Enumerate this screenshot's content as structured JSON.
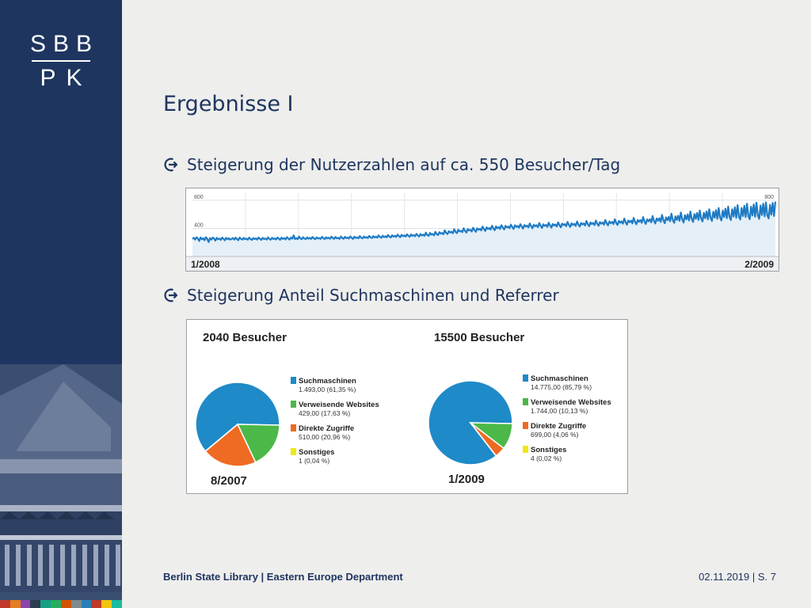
{
  "logo": {
    "top": "SBB",
    "bottom": "PK"
  },
  "title": "Ergebnisse I",
  "bullets": [
    "Steigerung der Nutzerzahlen auf ca. 550 Besucher/Tag",
    "Steigerung Anteil Suchmaschinen und Referrer"
  ],
  "colors": {
    "navy": "#1e3560",
    "line": "#1f7bc4",
    "area": "#e4eff8",
    "pie_search": "#1f8ac8",
    "pie_referrer": "#4cb848",
    "pie_direct": "#ef6a22",
    "pie_other": "#f1e814"
  },
  "chart_data": [
    {
      "type": "area",
      "xlabel_start": "1/2008",
      "xlabel_end": "2/2009",
      "yticks": [
        800,
        400
      ],
      "ylim": [
        0,
        900
      ],
      "x_start": "1/2008",
      "x_end": "2/2009",
      "series": [
        {
          "values": [
            250,
            265,
            240,
            275,
            255,
            220,
            270,
            245,
            260,
            230,
            275,
            250,
            205,
            260,
            240,
            270,
            255,
            225,
            265,
            245,
            255,
            235,
            270,
            250,
            230,
            265,
            245,
            260,
            240,
            250,
            262,
            240,
            268,
            248,
            232,
            270,
            250,
            240,
            265,
            245,
            255,
            238,
            268,
            250,
            235,
            262,
            248,
            258,
            240,
            270,
            252,
            236,
            266,
            248,
            256,
            240,
            272,
            250,
            238,
            265,
            248,
            258,
            242,
            270,
            254,
            236,
            268,
            250,
            262,
            242,
            276,
            255,
            240,
            270,
            252,
            300,
            248,
            262,
            245,
            285,
            258,
            245,
            275,
            255,
            248,
            272,
            252,
            265,
            250,
            278,
            258,
            245,
            272,
            255,
            262,
            250,
            280,
            260,
            248,
            275,
            256,
            268,
            252,
            282,
            262,
            250,
            278,
            258,
            265,
            250,
            285,
            262,
            252,
            280,
            260,
            270,
            255,
            286,
            265,
            250,
            282,
            262,
            272,
            258,
            290,
            268,
            258,
            285,
            266,
            276,
            262,
            292,
            272,
            262,
            290,
            270,
            282,
            268,
            300,
            278,
            266,
            296,
            276,
            288,
            272,
            306,
            284,
            270,
            302,
            282,
            295,
            278,
            312,
            290,
            275,
            308,
            288,
            300,
            282,
            316,
            295,
            280,
            314,
            293,
            305,
            287,
            322,
            300,
            285,
            320,
            298,
            312,
            292,
            340,
            305,
            292,
            335,
            310,
            320,
            300,
            350,
            318,
            305,
            345,
            325,
            335,
            315,
            372,
            335,
            318,
            360,
            340,
            352,
            330,
            388,
            350,
            332,
            380,
            355,
            366,
            345,
            400,
            365,
            340,
            392,
            370,
            380,
            355,
            410,
            378,
            350,
            400,
            380,
            395,
            370,
            425,
            392,
            362,
            415,
            392,
            405,
            382,
            438,
            400,
            372,
            428,
            402,
            418,
            392,
            446,
            410,
            385,
            436,
            412,
            426,
            400,
            452,
            420,
            392,
            444,
            420,
            434,
            408,
            460,
            428,
            396,
            448,
            425,
            440,
            412,
            470,
            432,
            400,
            452,
            430,
            445,
            415,
            476,
            438,
            405,
            458,
            435,
            450,
            420,
            480,
            442,
            410,
            462,
            440,
            456,
            425,
            486,
            446,
            414,
            468,
            445,
            460,
            430,
            492,
            450,
            420,
            472,
            448,
            465,
            434,
            498,
            455,
            425,
            478,
            455,
            470,
            440,
            505,
            460,
            430,
            485,
            460,
            478,
            446,
            512,
            466,
            436,
            490,
            466,
            484,
            452,
            520,
            472,
            442,
            498,
            472,
            492,
            460,
            530,
            480,
            448,
            505,
            480,
            500,
            466,
            540,
            488,
            452,
            512,
            488,
            510,
            470,
            548,
            494,
            458,
            520,
            494,
            518,
            478,
            560,
            500,
            462,
            528,
            500,
            530,
            485,
            575,
            508,
            468,
            540,
            508,
            545,
            492,
            592,
            515,
            472,
            556,
            515,
            562,
            500,
            610,
            520,
            478,
            572,
            520,
            580,
            506,
            625,
            528,
            484,
            588,
            528,
            598,
            512,
            640,
            535,
            490,
            604,
            535,
            620,
            520,
            655,
            540,
            498,
            620,
            545,
            640,
            528,
            672,
            548,
            505,
            636,
            552,
            660,
            535,
            690,
            555,
            512,
            652,
            560,
            680,
            545,
            710,
            562,
            518,
            670,
            568,
            700,
            550,
            730,
            568,
            525,
            690,
            575,
            720,
            560,
            750,
            575,
            530,
            708,
            582,
            740,
            565,
            765,
            580,
            535,
            725,
            588,
            752,
            570,
            770,
            585,
            540,
            735,
            595,
            760,
            575,
            780
          ]
        }
      ]
    },
    {
      "type": "pie",
      "title": "2040 Besucher",
      "period": "8/2007",
      "slices": [
        {
          "label": "Suchmaschinen",
          "value": 1493,
          "detail": "1.493,00 (61,35 %)",
          "percent": 61.35
        },
        {
          "label": "Verweisende Websites",
          "value": 429,
          "detail": "429,00 (17,63 %)",
          "percent": 17.63
        },
        {
          "label": "Direkte Zugriffe",
          "value": 510,
          "detail": "510,00 (20,96 %)",
          "percent": 20.96
        },
        {
          "label": "Sonstiges",
          "value": 1,
          "detail": "1 (0,04 %)",
          "percent": 0.04
        }
      ]
    },
    {
      "type": "pie",
      "title": "15500 Besucher",
      "period": "1/2009",
      "slices": [
        {
          "label": "Suchmaschinen",
          "value": 14775,
          "detail": "14.775,00 (85,79 %)",
          "percent": 85.79
        },
        {
          "label": "Verweisende Websites",
          "value": 1744,
          "detail": "1.744,00 (10,13 %)",
          "percent": 10.13
        },
        {
          "label": "Direkte Zugriffe",
          "value": 699,
          "detail": "699,00 (4,06 %)",
          "percent": 4.06
        },
        {
          "label": "Sonstiges",
          "value": 4,
          "detail": "4 (0,02 %)",
          "percent": 0.02
        }
      ]
    }
  ],
  "footer": {
    "left": "Berlin State Library | Eastern Europe Department",
    "right": "02.11.2019 | S. 7"
  }
}
